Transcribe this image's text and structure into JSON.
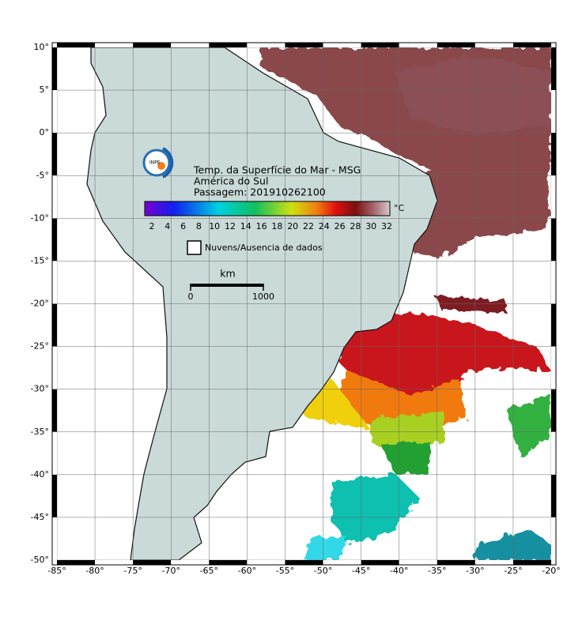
{
  "map": {
    "title": "Temp. da Superfície do Mar - MSG",
    "region": "América do Sul",
    "pass": "Passagem: 201910262100",
    "logo_text": "INPE",
    "colorbar": {
      "unit": "°C",
      "ticks": [
        2,
        4,
        6,
        8,
        10,
        12,
        14,
        16,
        18,
        20,
        22,
        24,
        26,
        28,
        30,
        32
      ]
    },
    "legend": "Nuvens/Ausencia de dados",
    "scale": {
      "unit": "km",
      "ticks": [
        0,
        1000
      ]
    },
    "xlim": [
      -85,
      -20
    ],
    "ylim": [
      -50,
      10
    ],
    "xticks": [
      {
        "value": -85,
        "label": "-85°"
      },
      {
        "value": -80,
        "label": "-80°"
      },
      {
        "value": -75,
        "label": "-75°"
      },
      {
        "value": -70,
        "label": "-70°"
      },
      {
        "value": -65,
        "label": "-65°"
      },
      {
        "value": -60,
        "label": "-60°"
      },
      {
        "value": -55,
        "label": "-55°"
      },
      {
        "value": -50,
        "label": "-50°"
      },
      {
        "value": -45,
        "label": "-45°"
      },
      {
        "value": -40,
        "label": "-40°"
      },
      {
        "value": -35,
        "label": "-35°"
      },
      {
        "value": -30,
        "label": "-30°"
      },
      {
        "value": -25,
        "label": "-25°"
      },
      {
        "value": -20,
        "label": "-20°"
      }
    ],
    "yticks": [
      {
        "value": 10,
        "label": "10°"
      },
      {
        "value": 5,
        "label": "5°"
      },
      {
        "value": 0,
        "label": "0°"
      },
      {
        "value": -5,
        "label": "-5°"
      },
      {
        "value": -10,
        "label": "-10°"
      },
      {
        "value": -15,
        "label": "-15°"
      },
      {
        "value": -20,
        "label": "-20°"
      },
      {
        "value": -25,
        "label": "-25°"
      },
      {
        "value": -30,
        "label": "-30°"
      },
      {
        "value": -35,
        "label": "-35°"
      },
      {
        "value": -40,
        "label": "-40°"
      },
      {
        "value": -45,
        "label": "-45°"
      },
      {
        "value": -50,
        "label": "-50°"
      }
    ],
    "grid": true
  }
}
